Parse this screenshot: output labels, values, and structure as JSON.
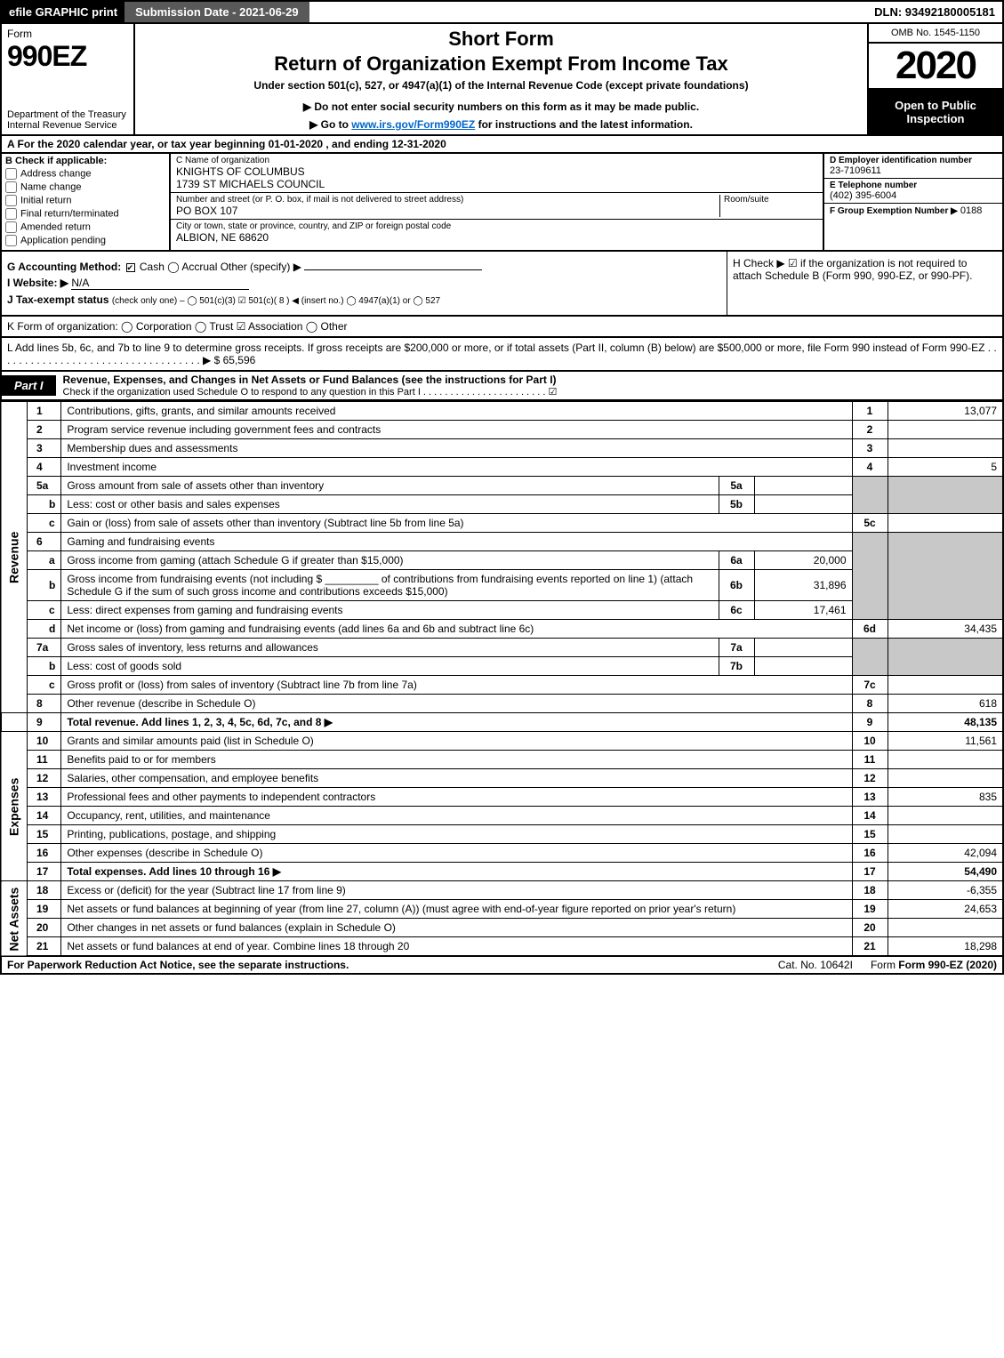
{
  "topbar": {
    "efile": "efile GRAPHIC print",
    "submission": "Submission Date - 2021-06-29",
    "dln": "DLN: 93492180005181"
  },
  "header": {
    "formword": "Form",
    "formnum": "990EZ",
    "dept": "Department of the Treasury",
    "irs": "Internal Revenue Service",
    "title1": "Short Form",
    "title2": "Return of Organization Exempt From Income Tax",
    "subtitle": "Under section 501(c), 527, or 4947(a)(1) of the Internal Revenue Code (except private foundations)",
    "note": "▶ Do not enter social security numbers on this form as it may be made public.",
    "link_pre": "▶ Go to ",
    "link_url": "www.irs.gov/Form990EZ",
    "link_post": " for instructions and the latest information.",
    "omb": "OMB No. 1545-1150",
    "year": "2020",
    "insp1": "Open to Public",
    "insp2": "Inspection"
  },
  "rowA": "A For the 2020 calendar year, or tax year beginning 01-01-2020 , and ending 12-31-2020",
  "colB": {
    "title": "B Check if applicable:",
    "opts": [
      "Address change",
      "Name change",
      "Initial return",
      "Final return/terminated",
      "Amended return",
      "Application pending"
    ]
  },
  "colC": {
    "name_lbl": "C Name of organization",
    "name1": "KNIGHTS OF COLUMBUS",
    "name2": "1739 ST MICHAELS COUNCIL",
    "street_lbl": "Number and street (or P. O. box, if mail is not delivered to street address)",
    "room_lbl": "Room/suite",
    "street": "PO BOX 107",
    "city_lbl": "City or town, state or province, country, and ZIP or foreign postal code",
    "city": "ALBION, NE  68620"
  },
  "colD": {
    "lbl": "D Employer identification number",
    "val": "23-7109611"
  },
  "colE": {
    "lbl": "E Telephone number",
    "val": "(402) 395-6004"
  },
  "colF": {
    "lbl": "F Group Exemption Number ▶",
    "val": "0188"
  },
  "rowG": {
    "g_lbl": "G Accounting Method:",
    "g_opts": "Cash   ◯ Accrual   Other (specify) ▶",
    "i_lbl": "I Website: ▶",
    "i_val": "N/A",
    "j_lbl": "J Tax-exempt status",
    "j_opts": "(check only one) – ◯ 501(c)(3)  ☑ 501(c)( 8 ) ◀ (insert no.)  ◯ 4947(a)(1) or  ◯ 527"
  },
  "rowH": {
    "text": "H  Check ▶ ☑ if the organization is not required to attach Schedule B (Form 990, 990-EZ, or 990-PF)."
  },
  "rowK": "K Form of organization:   ◯ Corporation   ◯ Trust   ☑ Association   ◯ Other",
  "rowL": "L Add lines 5b, 6c, and 7b to line 9 to determine gross receipts. If gross receipts are $200,000 or more, or if total assets (Part II, column (B) below) are $500,000 or more, file Form 990 instead of Form 990-EZ . . . . . . . . . . . . . . . . . . . . . . . . . . . . . . . . . . . ▶ $ 65,596",
  "part1": {
    "tab": "Part I",
    "title": "Revenue, Expenses, and Changes in Net Assets or Fund Balances (see the instructions for Part I)",
    "sub": "Check if the organization used Schedule O to respond to any question in this Part I . . . . . . . . . . . . . . . . . . . . . . . ☑"
  },
  "side": {
    "rev": "Revenue",
    "exp": "Expenses",
    "na": "Net Assets"
  },
  "lines": {
    "l1": {
      "n": "1",
      "d": "Contributions, gifts, grants, and similar amounts received",
      "amt": "13,077"
    },
    "l2": {
      "n": "2",
      "d": "Program service revenue including government fees and contracts",
      "amt": ""
    },
    "l3": {
      "n": "3",
      "d": "Membership dues and assessments",
      "amt": ""
    },
    "l4": {
      "n": "4",
      "d": "Investment income",
      "amt": "5"
    },
    "l5a": {
      "n": "5a",
      "d": "Gross amount from sale of assets other than inventory",
      "sv": ""
    },
    "l5b": {
      "n": "b",
      "d": "Less: cost or other basis and sales expenses",
      "sv": ""
    },
    "l5c": {
      "n": "c",
      "d": "Gain or (loss) from sale of assets other than inventory (Subtract line 5b from line 5a)",
      "amt": ""
    },
    "l6": {
      "n": "6",
      "d": "Gaming and fundraising events"
    },
    "l6a": {
      "n": "a",
      "d": "Gross income from gaming (attach Schedule G if greater than $15,000)",
      "sv": "20,000"
    },
    "l6b": {
      "n": "b",
      "d": "Gross income from fundraising events (not including $ _________ of contributions from fundraising events reported on line 1) (attach Schedule G if the sum of such gross income and contributions exceeds $15,000)",
      "sv": "31,896"
    },
    "l6c": {
      "n": "c",
      "d": "Less: direct expenses from gaming and fundraising events",
      "sv": "17,461"
    },
    "l6d": {
      "n": "d",
      "d": "Net income or (loss) from gaming and fundraising events (add lines 6a and 6b and subtract line 6c)",
      "amt": "34,435"
    },
    "l7a": {
      "n": "7a",
      "d": "Gross sales of inventory, less returns and allowances",
      "sv": ""
    },
    "l7b": {
      "n": "b",
      "d": "Less: cost of goods sold",
      "sv": ""
    },
    "l7c": {
      "n": "c",
      "d": "Gross profit or (loss) from sales of inventory (Subtract line 7b from line 7a)",
      "amt": ""
    },
    "l8": {
      "n": "8",
      "d": "Other revenue (describe in Schedule O)",
      "amt": "618"
    },
    "l9": {
      "n": "9",
      "d": "Total revenue. Add lines 1, 2, 3, 4, 5c, 6d, 7c, and 8",
      "amt": "48,135"
    },
    "l10": {
      "n": "10",
      "d": "Grants and similar amounts paid (list in Schedule O)",
      "amt": "11,561"
    },
    "l11": {
      "n": "11",
      "d": "Benefits paid to or for members",
      "amt": ""
    },
    "l12": {
      "n": "12",
      "d": "Salaries, other compensation, and employee benefits",
      "amt": ""
    },
    "l13": {
      "n": "13",
      "d": "Professional fees and other payments to independent contractors",
      "amt": "835"
    },
    "l14": {
      "n": "14",
      "d": "Occupancy, rent, utilities, and maintenance",
      "amt": ""
    },
    "l15": {
      "n": "15",
      "d": "Printing, publications, postage, and shipping",
      "amt": ""
    },
    "l16": {
      "n": "16",
      "d": "Other expenses (describe in Schedule O)",
      "amt": "42,094"
    },
    "l17": {
      "n": "17",
      "d": "Total expenses. Add lines 10 through 16",
      "amt": "54,490"
    },
    "l18": {
      "n": "18",
      "d": "Excess or (deficit) for the year (Subtract line 17 from line 9)",
      "amt": "-6,355"
    },
    "l19": {
      "n": "19",
      "d": "Net assets or fund balances at beginning of year (from line 27, column (A)) (must agree with end-of-year figure reported on prior year's return)",
      "amt": "24,653"
    },
    "l20": {
      "n": "20",
      "d": "Other changes in net assets or fund balances (explain in Schedule O)",
      "amt": ""
    },
    "l21": {
      "n": "21",
      "d": "Net assets or fund balances at end of year. Combine lines 18 through 20",
      "amt": "18,298"
    }
  },
  "footer": {
    "l": "For Paperwork Reduction Act Notice, see the separate instructions.",
    "c": "Cat. No. 10642I",
    "r": "Form 990-EZ (2020)"
  },
  "colors": {
    "black": "#000000",
    "grey": "#c8c8c8",
    "darkgrey": "#595959",
    "link": "#0066cc"
  }
}
